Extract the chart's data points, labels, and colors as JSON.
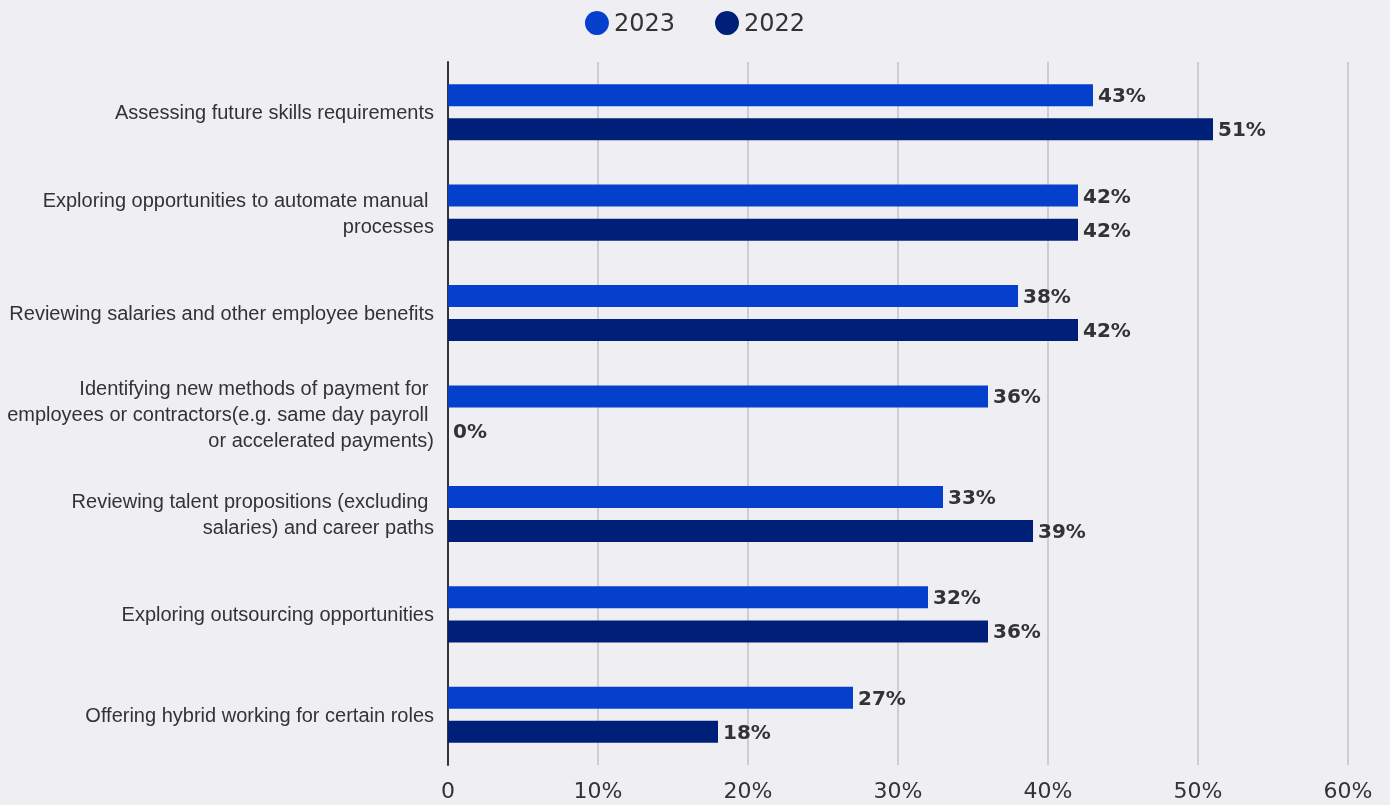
{
  "chart_data": {
    "type": "bar",
    "orientation": "horizontal",
    "categories": [
      "Assessing future skills requirements",
      "Exploring opportunities to automate manual processes",
      "Reviewing salaries and other employee benefits",
      "Identifying new methods of payment for employees or contractors(e.g. same day payroll or accelerated payments)",
      "Reviewing talent propositions (excluding salaries) and career paths",
      "Exploring outsourcing opportunities",
      "Offering hybrid working for certain roles"
    ],
    "series": [
      {
        "name": "2023",
        "color": "#0540cc",
        "values": [
          43,
          42,
          38,
          36,
          33,
          32,
          27
        ],
        "value_labels": [
          "43%",
          "42%",
          "38%",
          "36%",
          "33%",
          "32%",
          "27%"
        ]
      },
      {
        "name": "2022",
        "color": "#001f78",
        "values": [
          51,
          42,
          42,
          0,
          39,
          36,
          18
        ],
        "value_labels": [
          "51%",
          "42%",
          "42%",
          "0%",
          "39%",
          "36%",
          "18%"
        ]
      }
    ],
    "xlim": [
      0,
      60
    ],
    "xticks": [
      0,
      {
        "value": 10,
        "label": "10%"
      },
      {
        "value": 20,
        "label": "20%"
      },
      {
        "value": 30,
        "label": "30%"
      },
      {
        "value": 40,
        "label": "40%"
      },
      {
        "value": 50,
        "label": "50%"
      },
      {
        "value": 60,
        "label": "60%"
      }
    ],
    "grid": "x",
    "legend": "top"
  }
}
